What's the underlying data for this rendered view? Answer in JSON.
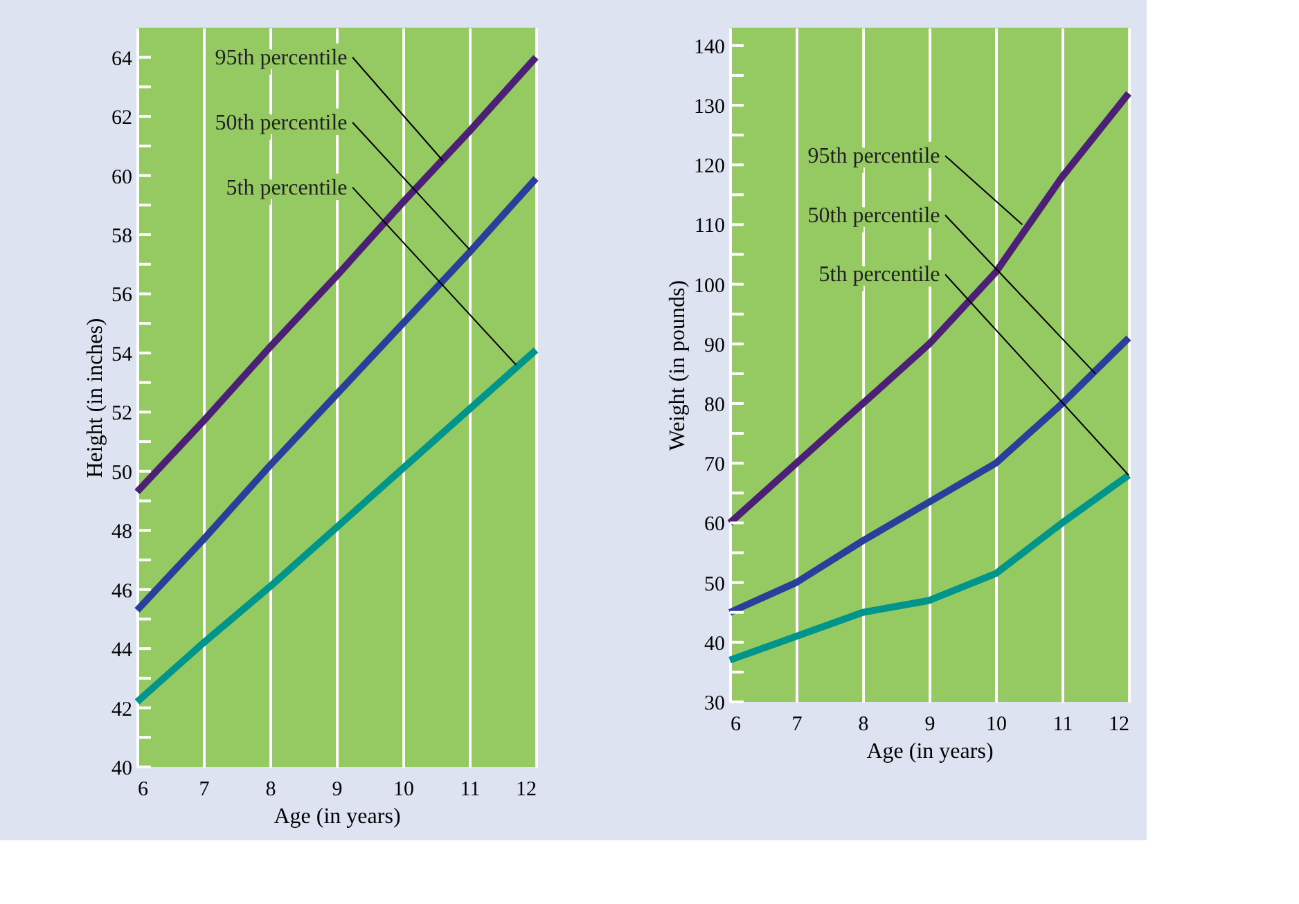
{
  "chart_data": [
    {
      "type": "line",
      "xlabel": "Age (in years)",
      "ylabel": "Height (in inches)",
      "x": [
        6,
        7,
        8,
        9,
        10,
        11,
        12
      ],
      "series": [
        {
          "color": "#4b2075",
          "values": [
            49.3,
            51.7,
            54.2,
            56.6,
            59.1,
            61.5,
            64
          ]
        },
        {
          "color": "#2a3f99",
          "values": [
            45.3,
            47.7,
            50.2,
            52.6,
            55.0,
            57.4,
            59.9
          ]
        },
        {
          "color": "#00958a",
          "values": [
            42.2,
            44.2,
            46.1,
            48.1,
            50.1,
            52.1,
            54.1
          ]
        }
      ],
      "annotations": [
        {
          "text": "95th percentile",
          "x": 10.6,
          "y": 60.5
        },
        {
          "text": "50th percentile",
          "x": 11,
          "y": 57.5
        },
        {
          "text": "5th percentile",
          "x": 11.7,
          "y": 53.6
        }
      ],
      "xlim": [
        6,
        12
      ],
      "xticks": [
        6,
        7,
        8,
        9,
        10,
        11,
        12
      ],
      "ylim": [
        40,
        65
      ],
      "yticks": [
        40,
        {
          "value": 41,
          "label": null
        },
        42,
        {
          "value": 43,
          "label": null
        },
        44,
        {
          "value": 45,
          "label": null
        },
        46,
        {
          "value": 47,
          "label": null
        },
        48,
        {
          "value": 49,
          "label": null
        },
        50,
        {
          "value": 51,
          "label": null
        },
        52,
        {
          "value": 53,
          "label": null
        },
        54,
        {
          "value": 55,
          "label": null
        },
        56,
        {
          "value": 57,
          "label": null
        },
        58,
        {
          "value": 59,
          "label": null
        },
        60,
        {
          "value": 61,
          "label": null
        },
        62,
        {
          "value": 63,
          "label": null
        },
        64
      ],
      "grid": "x",
      "line_style": "solid",
      "marker": "none"
    },
    {
      "type": "line",
      "xlabel": "Age (in years)",
      "ylabel": "Weight (in pounds)",
      "x": [
        6,
        7,
        8,
        9,
        10,
        11,
        12
      ],
      "series": [
        {
          "color": "#4b2075",
          "values": [
            60,
            70,
            80,
            90,
            102,
            118,
            132
          ]
        },
        {
          "color": "#2a3f99",
          "values": [
            45,
            50,
            57,
            63.5,
            70,
            80,
            91
          ]
        },
        {
          "color": "#00958a",
          "values": [
            37,
            41,
            45,
            47,
            51.5,
            60,
            68
          ]
        }
      ],
      "annotations": [
        {
          "text": "95th percentile",
          "x": 10.4,
          "y": 110
        },
        {
          "text": "50th percentile",
          "x": 11.5,
          "y": 85
        },
        {
          "text": "5th percentile",
          "x": 12,
          "y": 68
        }
      ],
      "xlim": [
        6,
        12
      ],
      "xticks": [
        6,
        7,
        8,
        9,
        10,
        11,
        12
      ],
      "ylim": [
        30,
        143
      ],
      "yticks": [
        30,
        {
          "value": 35,
          "label": null
        },
        40,
        {
          "value": 45,
          "label": null
        },
        50,
        {
          "value": 55,
          "label": null
        },
        60,
        {
          "value": 65,
          "label": null
        },
        70,
        {
          "value": 75,
          "label": null
        },
        80,
        {
          "value": 85,
          "label": null
        },
        90,
        {
          "value": 95,
          "label": null
        },
        100,
        {
          "value": 105,
          "label": null
        },
        110,
        {
          "value": 115,
          "label": null
        },
        120,
        {
          "value": 125,
          "label": null
        },
        130,
        {
          "value": 135,
          "label": null
        },
        140
      ],
      "grid": "x",
      "line_style": "solid",
      "marker": "none"
    }
  ]
}
